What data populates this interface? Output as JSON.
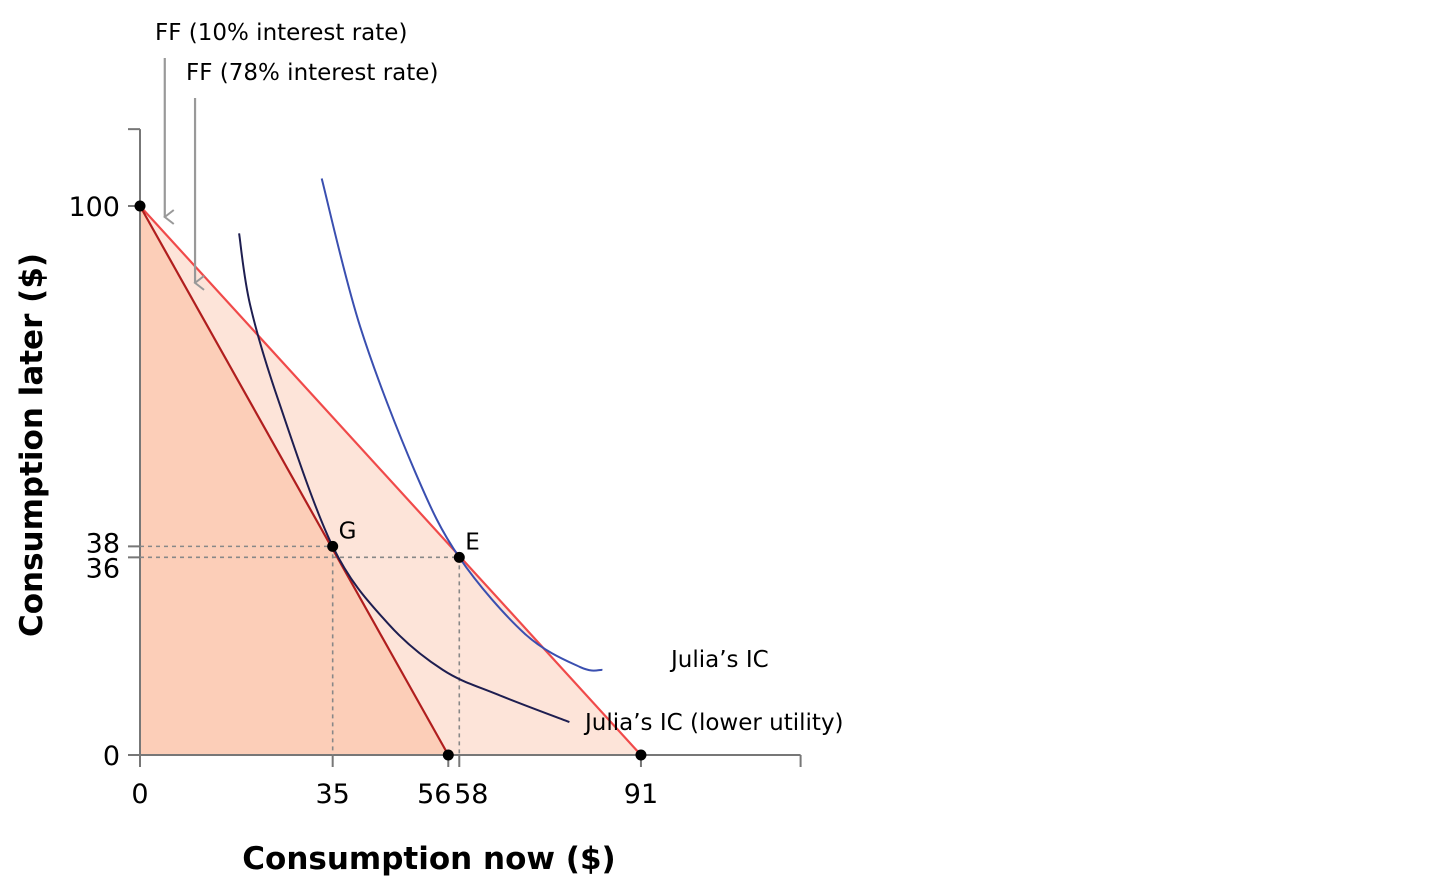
{
  "chart_data": {
    "type": "line",
    "xlabel": "Consumption now ($)",
    "ylabel": "Consumption later ($)",
    "xlim": [
      0,
      120
    ],
    "ylim": [
      0,
      114
    ],
    "x_ticks": [
      0,
      35,
      56,
      58,
      91
    ],
    "y_ticks": [
      0,
      36,
      38,
      100
    ],
    "grid": false,
    "legend": "none",
    "colors": {
      "ff_low_rate": "#f04a4a",
      "ff_high_rate": "#b01e1e",
      "ic": "#3a4fb0",
      "ic_lower": "#1e1e50",
      "region_dark": "#fcceb8",
      "region_light": "#fde4d9",
      "arrow": "#999999",
      "guide": "#888888"
    },
    "series": [
      {
        "name": "FF (10% interest rate)",
        "points": [
          [
            0,
            100
          ],
          [
            91,
            0
          ]
        ]
      },
      {
        "name": "FF (78% interest rate)",
        "points": [
          [
            0,
            100
          ],
          [
            56,
            0
          ]
        ]
      },
      {
        "name": "Julia’s IC",
        "points": [
          [
            33,
            105
          ],
          [
            40,
            78
          ],
          [
            50,
            51.5
          ],
          [
            58,
            36
          ],
          [
            70,
            22
          ],
          [
            80,
            16
          ],
          [
            84,
            15.5
          ]
        ]
      },
      {
        "name": "Julia’s IC (lower utility)",
        "points": [
          [
            18,
            95
          ],
          [
            20,
            82
          ],
          [
            25,
            65
          ],
          [
            35,
            38
          ],
          [
            45,
            24
          ],
          [
            55,
            15.5
          ],
          [
            65,
            11
          ],
          [
            78,
            6
          ]
        ]
      }
    ],
    "points": [
      {
        "label": "G",
        "x": 35,
        "y": 38
      },
      {
        "label": "E",
        "x": 58,
        "y": 36
      },
      {
        "label": "",
        "x": 0,
        "y": 100
      },
      {
        "label": "",
        "x": 56,
        "y": 0
      },
      {
        "label": "",
        "x": 91,
        "y": 0
      }
    ],
    "annotations": [
      {
        "text": "FF (10% interest rate)",
        "arrow_to": [
          4.5,
          98
        ]
      },
      {
        "text": "FF (78% interest rate)",
        "arrow_to": [
          10,
          86
        ]
      }
    ],
    "curve_labels": [
      "Julia’s IC",
      "Julia’s IC (lower utility)"
    ]
  }
}
